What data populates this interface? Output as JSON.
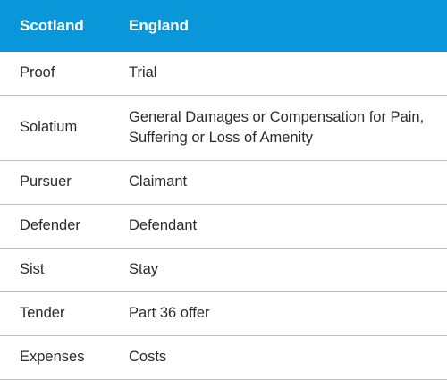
{
  "table": {
    "headers": [
      "Scotland",
      "England"
    ],
    "rows": [
      {
        "scotland": "Proof",
        "england": "Trial"
      },
      {
        "scotland": "Solatium",
        "england": "General Damages or Compensation for Pain, Suffering or Loss of Amenity"
      },
      {
        "scotland": "Pursuer",
        "england": "Claimant"
      },
      {
        "scotland": "Defender",
        "england": "Defendant"
      },
      {
        "scotland": "Sist",
        "england": "Stay"
      },
      {
        "scotland": "Tender",
        "england": "Part 36 offer"
      },
      {
        "scotland": "Expenses",
        "england": "Costs"
      }
    ]
  },
  "colors": {
    "header_bg": "#0a97d9",
    "header_text": "#ffffff",
    "border": "#bfbfbf"
  }
}
